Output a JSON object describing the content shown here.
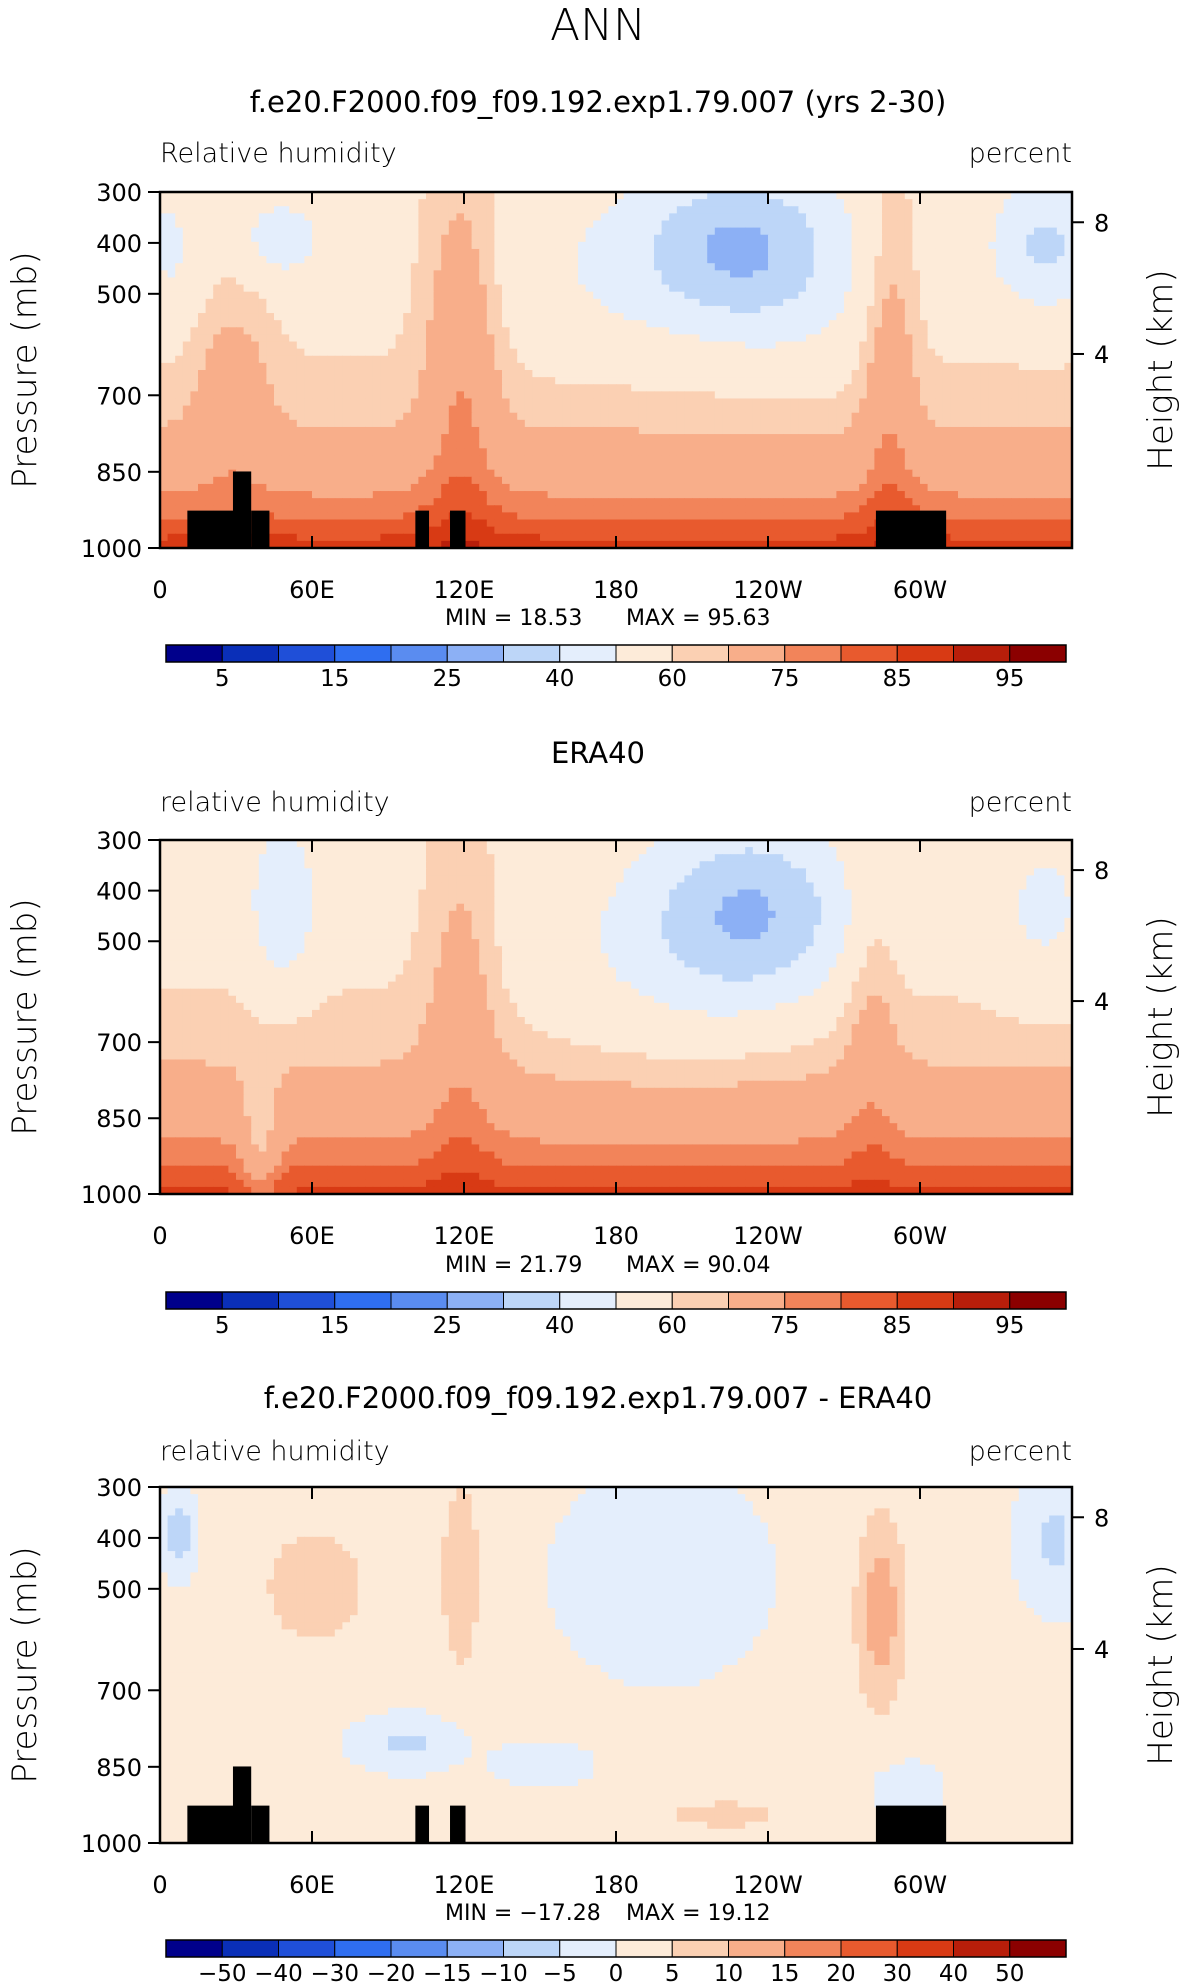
{
  "page_title": "ANN",
  "colors": {
    "rh_bar": [
      "#00008b",
      "#0a2fb8",
      "#1f4fd8",
      "#2f6ef0",
      "#5a8cf0",
      "#8cb0f5",
      "#bdd6f8",
      "#e4eefc",
      "#fdebd9",
      "#fbd0b3",
      "#f8ae8a",
      "#f2845a",
      "#e85a2e",
      "#d83a14",
      "#b81e0a",
      "#8b0000"
    ],
    "diff_bar": [
      "#00008b",
      "#0a2fb8",
      "#1f4fd8",
      "#2f6ef0",
      "#5a8cf0",
      "#8cb0f5",
      "#bdd6f8",
      "#e4eefc",
      "#fdebd9",
      "#fbd0b3",
      "#f8ae8a",
      "#f2845a",
      "#e85a2e",
      "#d83a14",
      "#b81e0a",
      "#8b0000"
    ],
    "land": "#000000"
  },
  "chart_data": [
    {
      "type": "heatmap",
      "title": "f.e20.F2000.f09_f09.192.exp1.79.007 (yrs 2-30)",
      "left_label": "Relative humidity",
      "right_label": "percent",
      "ylabel": "Pressure (mb)",
      "y2label": "Height (km)",
      "x_ticks": [
        "0",
        "60E",
        "120E",
        "180",
        "120W",
        "60W"
      ],
      "y_ticks": [
        "300",
        "400",
        "500",
        "700",
        "850",
        "1000"
      ],
      "y2_ticks": [
        "8",
        "4"
      ],
      "min_text": "MIN =   18.53",
      "max_text": "MAX =   95.63",
      "colorbar_labels": [
        "5",
        "15",
        "25",
        "40",
        "60",
        "75",
        "85",
        "95"
      ],
      "field": "model"
    },
    {
      "type": "heatmap",
      "title": "ERA40",
      "left_label": "relative humidity",
      "right_label": "percent",
      "ylabel": "Pressure (mb)",
      "y2label": "Height (km)",
      "x_ticks": [
        "0",
        "60E",
        "120E",
        "180",
        "120W",
        "60W"
      ],
      "y_ticks": [
        "300",
        "400",
        "500",
        "700",
        "850",
        "1000"
      ],
      "y2_ticks": [
        "8",
        "4"
      ],
      "min_text": "MIN =   21.79",
      "max_text": "MAX =   90.04",
      "colorbar_labels": [
        "5",
        "15",
        "25",
        "40",
        "60",
        "75",
        "85",
        "95"
      ],
      "field": "obs"
    },
    {
      "type": "heatmap",
      "title": "f.e20.F2000.f09_f09.192.exp1.79.007 - ERA40",
      "left_label": "relative humidity",
      "right_label": "percent",
      "ylabel": "Pressure (mb)",
      "y2label": "Height (km)",
      "x_ticks": [
        "0",
        "60E",
        "120E",
        "180",
        "120W",
        "60W"
      ],
      "y_ticks": [
        "300",
        "400",
        "500",
        "700",
        "850",
        "1000"
      ],
      "y2_ticks": [
        "8",
        "4"
      ],
      "min_text": "MIN = −17.28",
      "max_text": "MAX =   19.12",
      "colorbar_labels": [
        "−50",
        "−40",
        "−30",
        "−20",
        "−15",
        "−10",
        "−5",
        "0",
        "5",
        "10",
        "15",
        "20",
        "30",
        "40",
        "50"
      ],
      "field": "diff"
    }
  ]
}
